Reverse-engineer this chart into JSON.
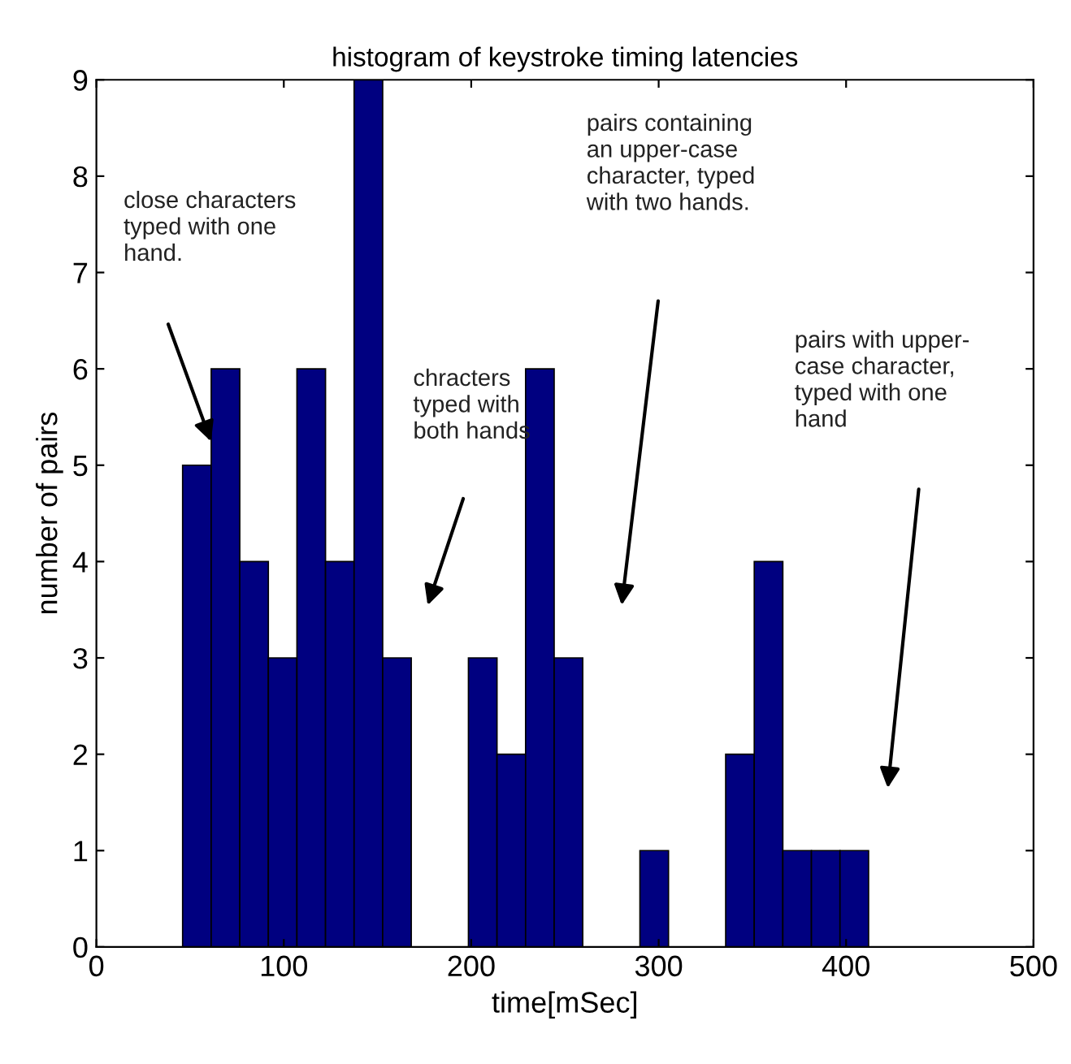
{
  "chart_data": {
    "type": "histogram",
    "title": "histogram of keystroke timing latencies",
    "xlabel": "time[mSec]",
    "ylabel": "number of pairs",
    "bins": [
      46,
      61.25,
      76.5,
      91.75,
      107,
      122.25,
      137.5,
      152.75,
      168,
      183.25,
      198.5,
      213.75,
      229,
      244.25,
      259.5,
      274.75,
      290,
      305.25,
      320.5,
      335.75,
      351,
      366.25,
      381.5,
      396.75,
      412
    ],
    "values": [
      5,
      6,
      4,
      3,
      6,
      4,
      9,
      3,
      0,
      0,
      3,
      2,
      6,
      3,
      0,
      0,
      1,
      0,
      0,
      2,
      4,
      1,
      1,
      1
    ],
    "color": "#000080",
    "xlim": [
      0,
      500
    ],
    "ylim": [
      0,
      9
    ],
    "xticks": [
      0,
      100,
      200,
      300,
      400,
      500
    ],
    "yticks": [
      0,
      1,
      2,
      3,
      4,
      5,
      6,
      7,
      8,
      9
    ],
    "grid": false,
    "legend": false,
    "annotations": [
      "close characters\ntyped with one\nhand.",
      "chracters\ntyped with\nboth hands",
      "pairs containing\nan upper-case\ncharacter, typed\nwith two hands.",
      "pairs with upper-\ncase character,\ntyped with one\nhand"
    ]
  }
}
